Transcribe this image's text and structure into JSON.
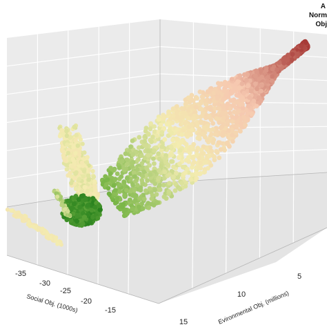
{
  "chart_data": {
    "type": "scatter",
    "projection": "3d",
    "title": "",
    "legend_title_lines": [
      "A",
      "Norm",
      "Obj"
    ],
    "x_axis": {
      "label": "Social Obj. (1000s)",
      "ticks": [
        "-35",
        "-30",
        "-25",
        "-20",
        "-15"
      ],
      "range": [
        -38,
        -12
      ]
    },
    "y_axis": {
      "label": "Evironmental Obj. (millions)",
      "ticks": [
        "5",
        "10",
        "15"
      ],
      "range": [
        3,
        17
      ]
    },
    "z_axis": {
      "label": "",
      "ticks": [],
      "range": [
        0,
        1
      ]
    },
    "grid": true,
    "color_scale": {
      "description": "green (low) to yellow to salmon to dark red (high)",
      "stops": [
        "#1e7b18",
        "#7ab648",
        "#f3ecb0",
        "#f6c8b0",
        "#a73a37"
      ]
    },
    "point_clusters": [
      {
        "name": "main-band-top",
        "count": 900
      },
      {
        "name": "main-band-middle",
        "count": 1100
      },
      {
        "name": "lower-left-arm",
        "count": 500
      },
      {
        "name": "green-core",
        "count": 350
      },
      {
        "name": "far-left-tail",
        "count": 90
      }
    ]
  }
}
